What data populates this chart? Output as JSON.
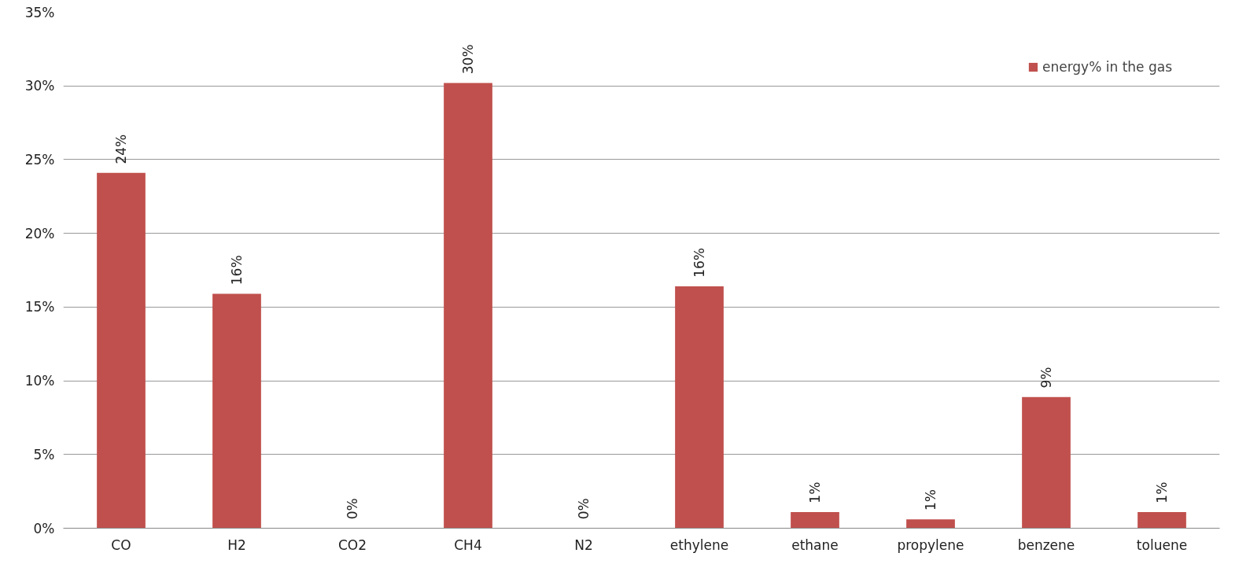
{
  "chart_data": {
    "type": "bar",
    "categories": [
      "CO",
      "H2",
      "CO2",
      "CH4",
      "N2",
      "ethylene",
      "ethane",
      "propylene",
      "benzene",
      "toluene"
    ],
    "series": [
      {
        "name": "energy% in the gas",
        "color": "#c0504d",
        "values": [
          24.1,
          15.9,
          0,
          30.2,
          0,
          16.4,
          1.1,
          0.6,
          8.9,
          1.1
        ],
        "value_labels": [
          "24%",
          "16%",
          "0%",
          "30%",
          "0%",
          "16%",
          "1%",
          "1%",
          "9%",
          "1%"
        ]
      }
    ],
    "ylim": [
      0,
      35
    ],
    "yticks": [
      {
        "value": 0,
        "label": "0%"
      },
      {
        "value": 5,
        "label": "5%"
      },
      {
        "value": 10,
        "label": "10%"
      },
      {
        "value": 15,
        "label": "15%"
      },
      {
        "value": 20,
        "label": "20%"
      },
      {
        "value": 25,
        "label": "25%"
      },
      {
        "value": 30,
        "label": "30%"
      },
      {
        "value": 35,
        "label": "35%"
      }
    ],
    "grid": "y",
    "legend": "top right"
  }
}
